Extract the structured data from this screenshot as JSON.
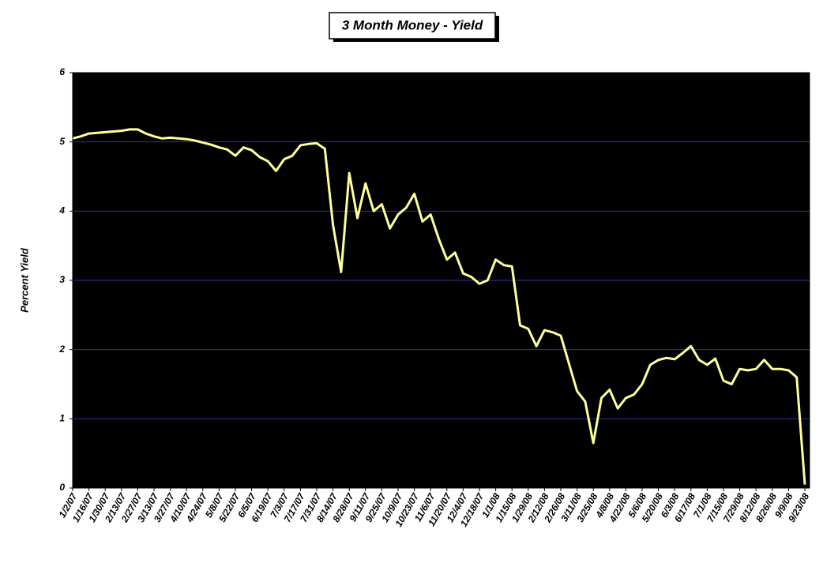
{
  "chart_data": {
    "type": "line",
    "title": "3 Month Money - Yield",
    "y_label": "Percent Yield",
    "categories": [
      "1/2/07",
      null,
      "1/16/07",
      null,
      "1/30/07",
      null,
      "2/13/07",
      null,
      "2/27/07",
      null,
      "3/13/07",
      null,
      "3/27/07",
      null,
      "4/10/07",
      null,
      "4/24/07",
      null,
      "5/8/07",
      null,
      "5/22/07",
      null,
      "6/5/07",
      null,
      "6/19/07",
      null,
      "7/3/07",
      null,
      "7/17/07",
      null,
      "7/31/07",
      null,
      "8/14/07",
      null,
      "8/28/07",
      null,
      "9/11/07",
      null,
      "9/25/07",
      null,
      "10/9/07",
      null,
      "10/23/07",
      null,
      "11/6/07",
      null,
      "11/20/07",
      null,
      "12/4/07",
      null,
      "12/18/07",
      null,
      "1/1/08",
      null,
      "1/15/08",
      null,
      "1/29/08",
      null,
      "2/12/08",
      null,
      "2/26/08",
      null,
      "3/11/08",
      null,
      "3/25/08",
      null,
      "4/8/08",
      null,
      "4/22/08",
      null,
      "5/6/08",
      null,
      "5/20/08",
      null,
      "6/3/08",
      null,
      "6/17/08",
      null,
      "7/1/08",
      null,
      "7/15/08",
      null,
      "7/29/08",
      null,
      "8/12/08",
      null,
      "8/26/08",
      null,
      "9/9/08",
      null,
      "9/23/08"
    ],
    "values": [
      5.05,
      5.08,
      5.12,
      5.13,
      5.14,
      5.15,
      5.16,
      5.18,
      5.18,
      5.12,
      5.08,
      5.05,
      5.06,
      5.05,
      5.04,
      5.02,
      4.99,
      4.96,
      4.92,
      4.89,
      4.8,
      4.92,
      4.88,
      4.78,
      4.72,
      4.58,
      4.75,
      4.8,
      4.95,
      4.97,
      4.98,
      4.9,
      3.8,
      3.12,
      4.55,
      3.9,
      4.4,
      4.0,
      4.1,
      3.75,
      3.95,
      4.05,
      4.25,
      3.85,
      3.95,
      3.6,
      3.3,
      3.4,
      3.1,
      3.05,
      2.95,
      3.0,
      3.3,
      3.22,
      3.2,
      2.35,
      2.3,
      2.05,
      2.28,
      2.25,
      2.2,
      1.8,
      1.4,
      1.25,
      0.65,
      1.3,
      1.42,
      1.15,
      1.3,
      1.35,
      1.5,
      1.78,
      1.85,
      1.88,
      1.86,
      1.95,
      2.05,
      1.85,
      1.78,
      1.87,
      1.55,
      1.5,
      1.72,
      1.7,
      1.72,
      1.85,
      1.72,
      1.72,
      1.7,
      1.6,
      0.05
    ],
    "color": "#ffff99",
    "ylim": [
      0,
      6
    ],
    "yticks": [
      0,
      1,
      2,
      3,
      4,
      5,
      6
    ],
    "grid": true
  }
}
